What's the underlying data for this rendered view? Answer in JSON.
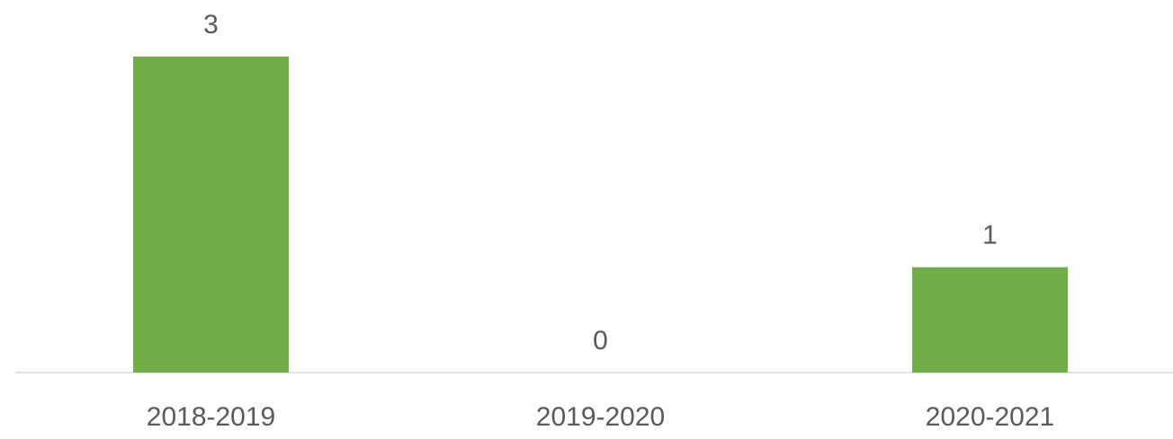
{
  "chart_data": {
    "type": "bar",
    "categories": [
      "2018-2019",
      "2019-2020",
      "2020-2021"
    ],
    "values": [
      3,
      0,
      1
    ],
    "color": "#70ad47",
    "ylim": [
      0,
      3
    ],
    "data_labels": true
  }
}
